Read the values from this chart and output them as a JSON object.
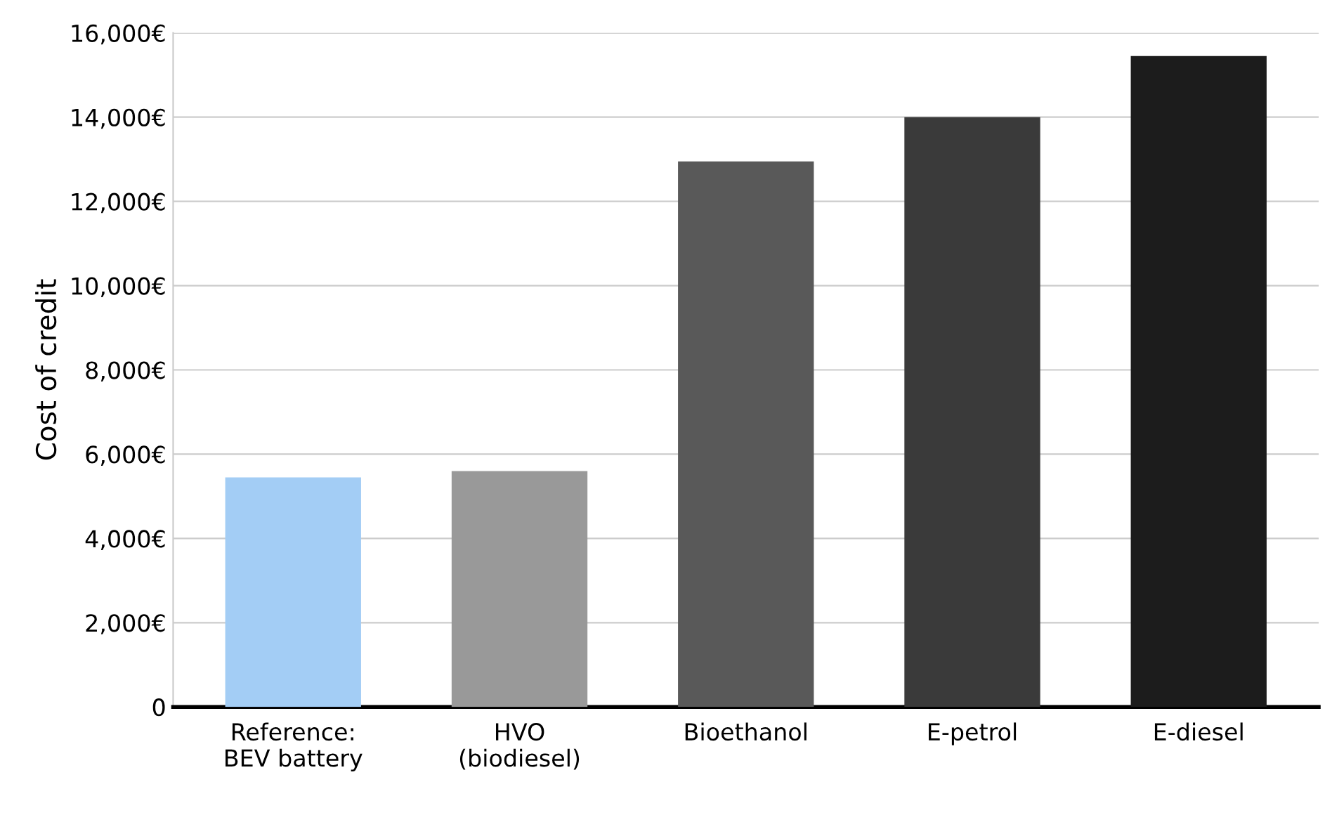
{
  "chart_data": {
    "type": "bar",
    "ylabel": "Cost of credit",
    "categories": [
      "Reference:\nBEV battery",
      "HVO\n(biodiesel)",
      "Bioethanol",
      "E-petrol",
      "E-diesel"
    ],
    "values": [
      5450,
      5600,
      12950,
      14000,
      15450
    ],
    "colors": [
      "#a3cdf5",
      "#999999",
      "#595959",
      "#3a3a3a",
      "#1c1c1c"
    ],
    "ylim": [
      0,
      16000
    ],
    "yticks": [
      {
        "value": 0,
        "label": "0"
      },
      {
        "value": 2000,
        "label": "2,000€"
      },
      {
        "value": 4000,
        "label": "4,000€"
      },
      {
        "value": 6000,
        "label": "6,000€"
      },
      {
        "value": 8000,
        "label": "8,000€"
      },
      {
        "value": 10000,
        "label": "10,000€"
      },
      {
        "value": 12000,
        "label": "12,000€"
      },
      {
        "value": 14000,
        "label": "14,000€"
      },
      {
        "value": 16000,
        "label": "16,000€"
      }
    ],
    "grid": "y",
    "legend": false
  }
}
